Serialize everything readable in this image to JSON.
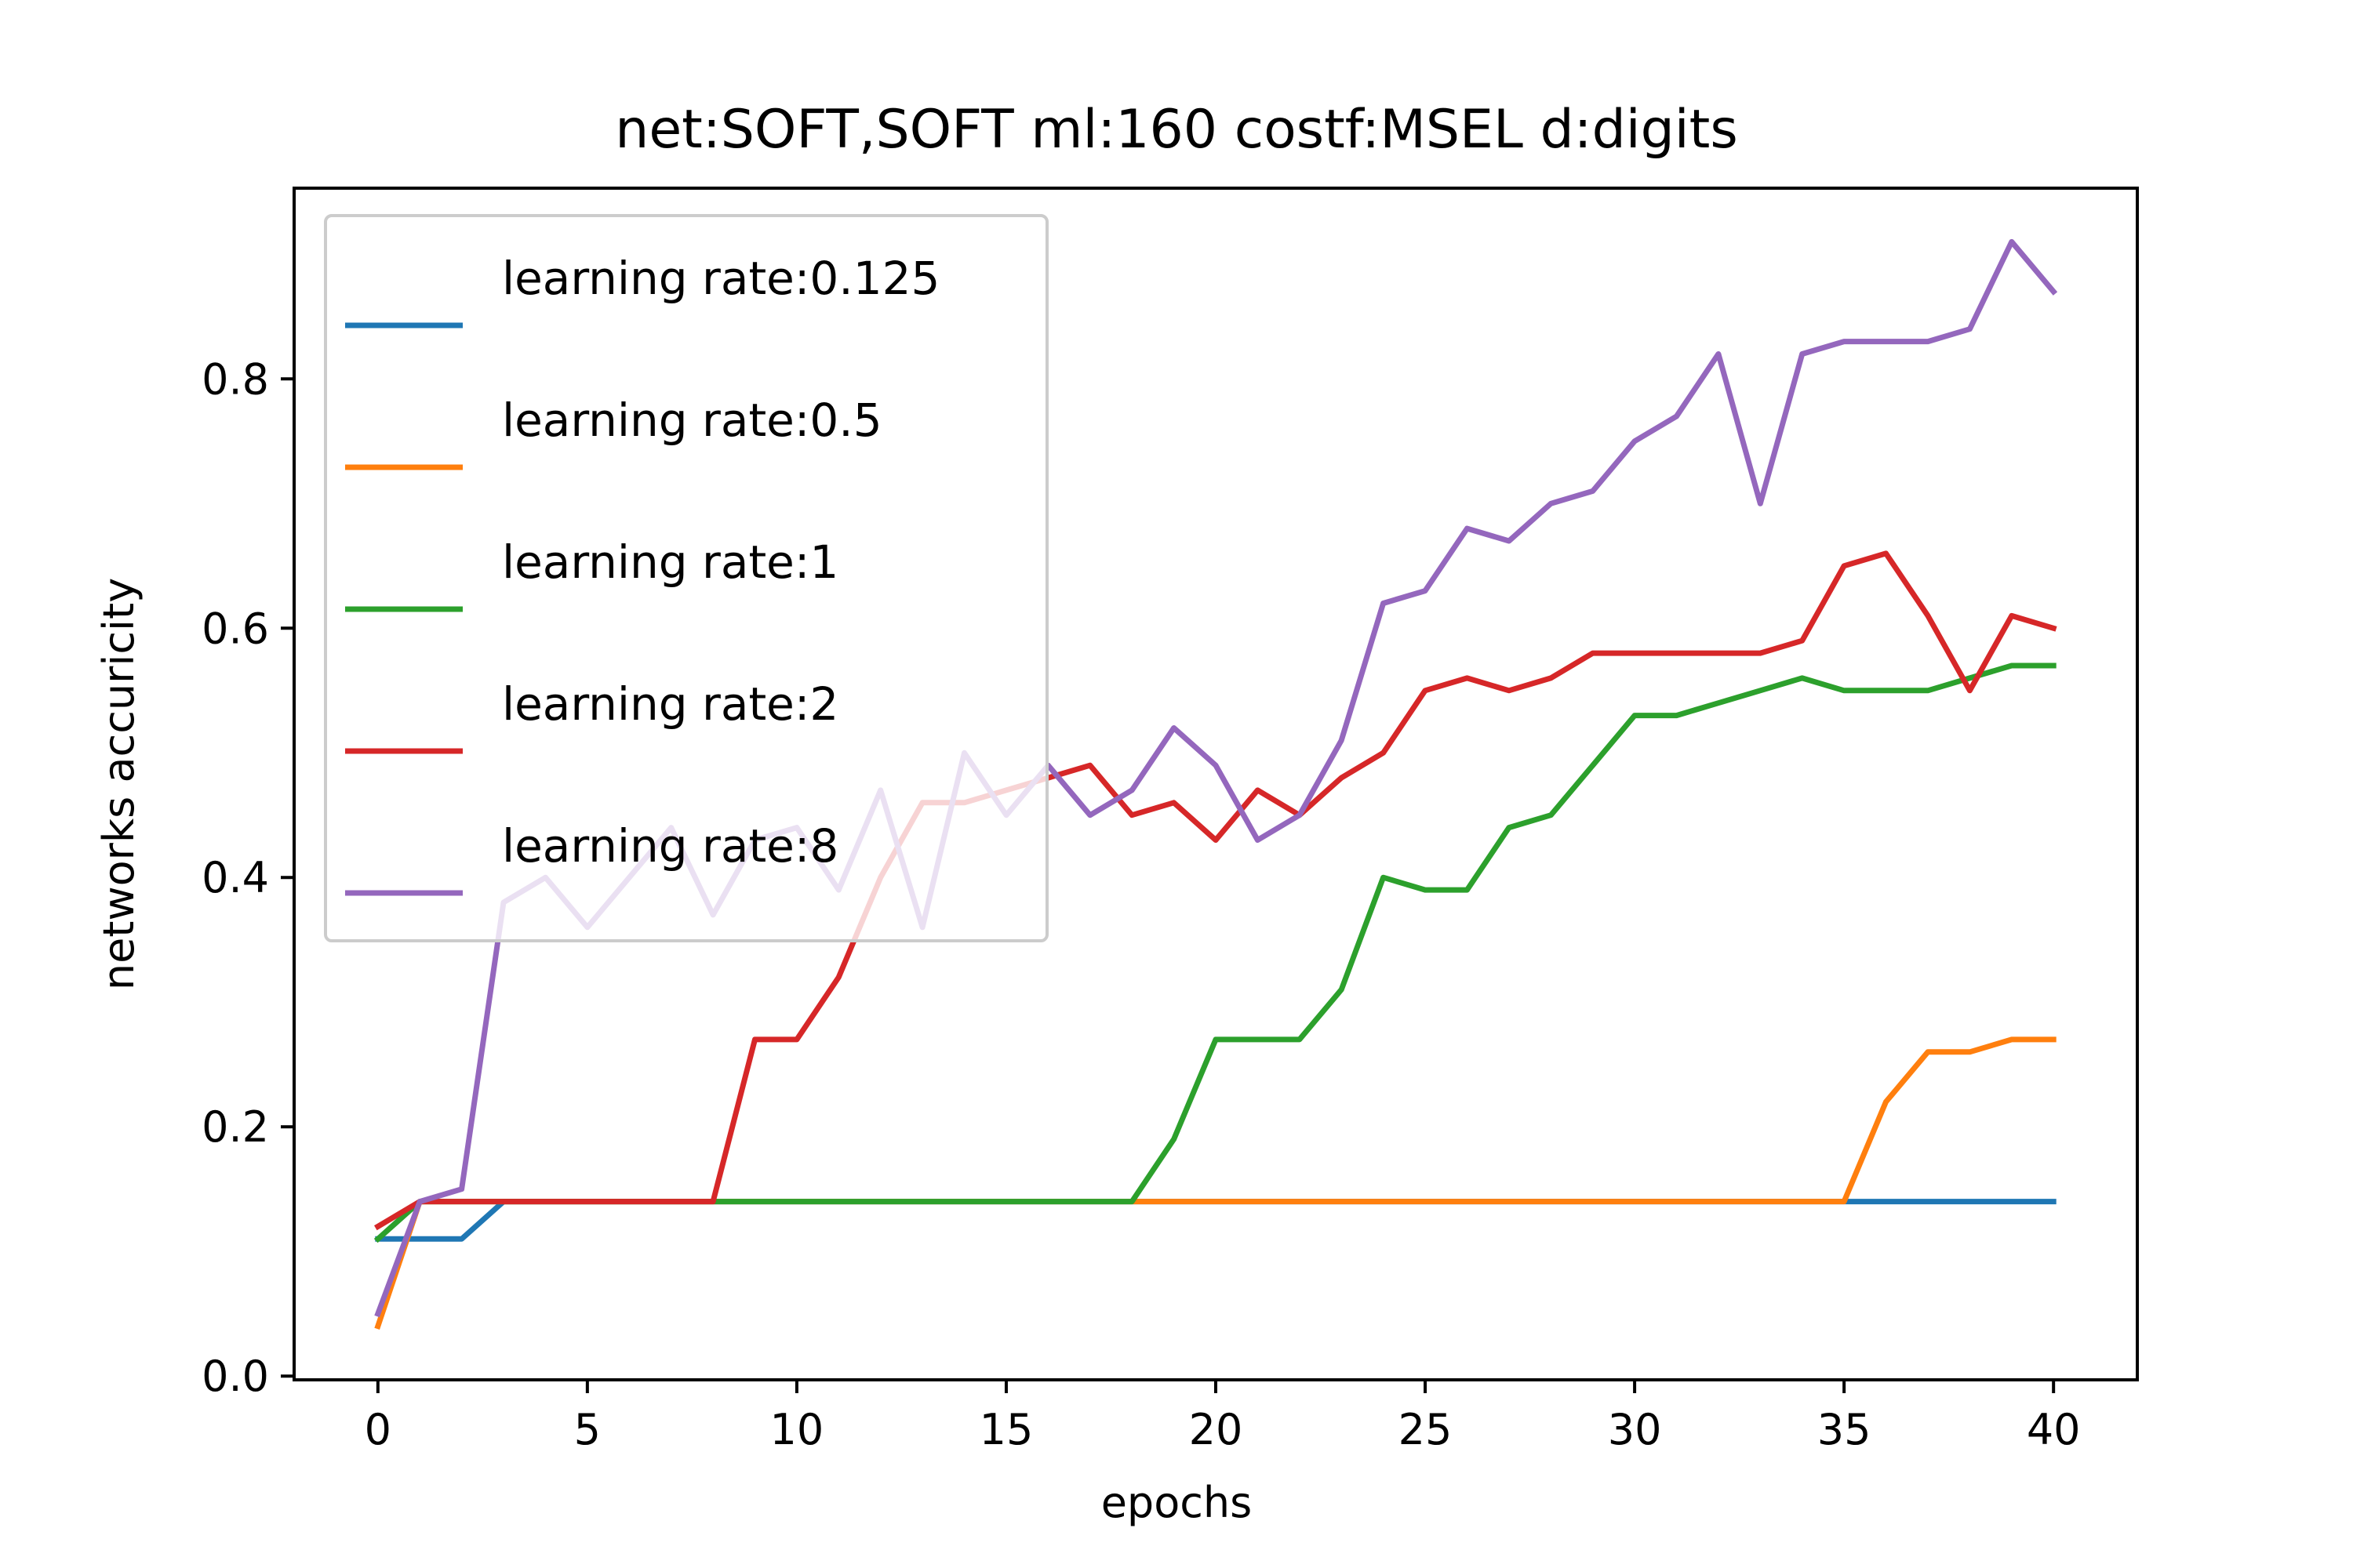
{
  "chart_data": {
    "type": "line",
    "title": "net:SOFT,SOFT ml:160 costf:MSEL d:digits",
    "xlabel": "epochs",
    "ylabel": "networks accuricity",
    "xlim": [
      -2,
      42
    ],
    "ylim": [
      -0.003,
      0.953
    ],
    "xticks": [
      0,
      5,
      10,
      15,
      20,
      25,
      30,
      35,
      40
    ],
    "xtick_labels": [
      "0",
      "5",
      "10",
      "15",
      "20",
      "25",
      "30",
      "35",
      "40"
    ],
    "yticks": [
      0.0,
      0.2,
      0.4,
      0.6,
      0.8
    ],
    "ytick_labels": [
      "0.0",
      "0.2",
      "0.4",
      "0.6",
      "0.8"
    ],
    "grid": false,
    "legend_position": "upper-left",
    "x": [
      0,
      1,
      2,
      3,
      4,
      5,
      6,
      7,
      8,
      9,
      10,
      11,
      12,
      13,
      14,
      15,
      16,
      17,
      18,
      19,
      20,
      21,
      22,
      23,
      24,
      25,
      26,
      27,
      28,
      29,
      30,
      31,
      32,
      33,
      34,
      35,
      36,
      37,
      38,
      39,
      40
    ],
    "series": [
      {
        "name": "learning rate:0.125",
        "color": "#1f77b4",
        "values": [
          0.11,
          0.11,
          0.11,
          0.14,
          0.14,
          0.14,
          0.14,
          0.14,
          0.14,
          0.14,
          0.14,
          0.14,
          0.14,
          0.14,
          0.14,
          0.14,
          0.14,
          0.14,
          0.14,
          0.14,
          0.14,
          0.14,
          0.14,
          0.14,
          0.14,
          0.14,
          0.14,
          0.14,
          0.14,
          0.14,
          0.14,
          0.14,
          0.14,
          0.14,
          0.14,
          0.14,
          0.14,
          0.14,
          0.14,
          0.14,
          0.14
        ]
      },
      {
        "name": "learning rate:0.5",
        "color": "#ff7f0e",
        "values": [
          0.04,
          0.14,
          0.14,
          0.14,
          0.14,
          0.14,
          0.14,
          0.14,
          0.14,
          0.14,
          0.14,
          0.14,
          0.14,
          0.14,
          0.14,
          0.14,
          0.14,
          0.14,
          0.14,
          0.14,
          0.14,
          0.14,
          0.14,
          0.14,
          0.14,
          0.14,
          0.14,
          0.14,
          0.14,
          0.14,
          0.14,
          0.14,
          0.14,
          0.14,
          0.14,
          0.14,
          0.22,
          0.26,
          0.26,
          0.27,
          0.27
        ]
      },
      {
        "name": "learning rate:1",
        "color": "#2ca02c",
        "values": [
          0.11,
          0.14,
          0.14,
          0.14,
          0.14,
          0.14,
          0.14,
          0.14,
          0.14,
          0.14,
          0.14,
          0.14,
          0.14,
          0.14,
          0.14,
          0.14,
          0.14,
          0.14,
          0.14,
          0.19,
          0.27,
          0.27,
          0.27,
          0.31,
          0.4,
          0.39,
          0.39,
          0.44,
          0.45,
          0.49,
          0.53,
          0.53,
          0.54,
          0.55,
          0.56,
          0.55,
          0.55,
          0.55,
          0.56,
          0.57,
          0.57
        ]
      },
      {
        "name": "learning rate:2",
        "color": "#d62728",
        "values": [
          0.12,
          0.14,
          0.14,
          0.14,
          0.14,
          0.14,
          0.14,
          0.14,
          0.14,
          0.27,
          0.27,
          0.32,
          0.4,
          0.46,
          0.46,
          0.47,
          0.48,
          0.49,
          0.45,
          0.46,
          0.43,
          0.47,
          0.45,
          0.48,
          0.5,
          0.55,
          0.56,
          0.55,
          0.56,
          0.58,
          0.58,
          0.58,
          0.58,
          0.58,
          0.59,
          0.65,
          0.66,
          0.61,
          0.55,
          0.61,
          0.6
        ]
      },
      {
        "name": "learning rate:8",
        "color": "#9467bd",
        "values": [
          0.05,
          0.14,
          0.15,
          0.38,
          0.4,
          0.36,
          0.4,
          0.44,
          0.37,
          0.43,
          0.44,
          0.39,
          0.47,
          0.36,
          0.5,
          0.45,
          0.49,
          0.45,
          0.47,
          0.52,
          0.49,
          0.43,
          0.45,
          0.51,
          0.62,
          0.63,
          0.68,
          0.67,
          0.7,
          0.71,
          0.75,
          0.77,
          0.82,
          0.7,
          0.82,
          0.83,
          0.83,
          0.83,
          0.84,
          0.91,
          0.87
        ]
      }
    ]
  }
}
